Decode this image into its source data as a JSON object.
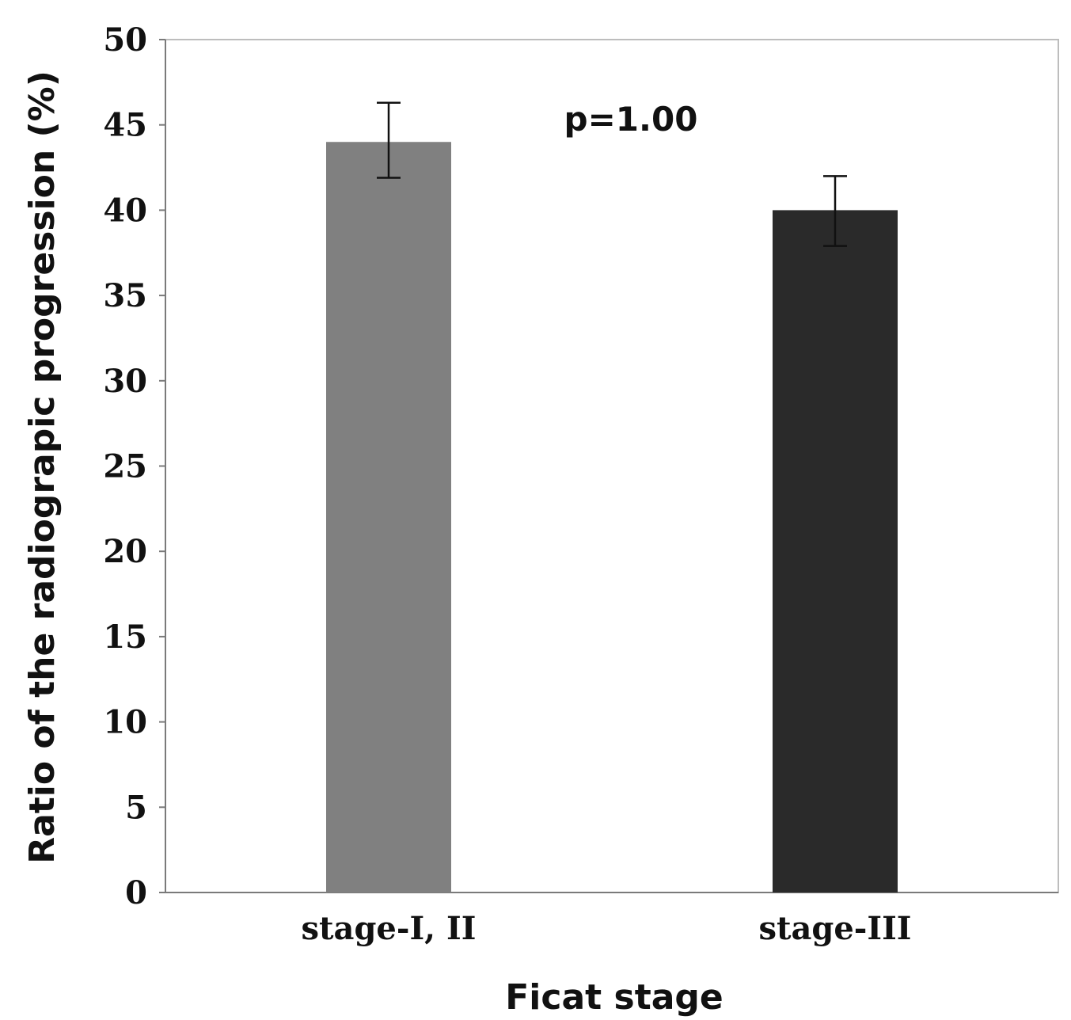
{
  "chart_data": {
    "type": "bar",
    "categories": [
      "stage-I, II",
      "stage-III"
    ],
    "values": [
      44,
      40
    ],
    "error": [
      {
        "low": 41.9,
        "high": 46.3
      },
      {
        "low": 37.9,
        "high": 42.0
      }
    ],
    "colors": [
      "#808080",
      "#2a2a2a"
    ],
    "xlabel": "Ficat stage",
    "ylabel": "Ratio of the radiograpic progression (%)",
    "ylim": [
      0,
      50
    ],
    "yticks": [
      "0",
      "5",
      "10",
      "15",
      "20",
      "25",
      "30",
      "35",
      "40",
      "45",
      "50"
    ],
    "annotation": "p=1.00",
    "grid": false
  }
}
